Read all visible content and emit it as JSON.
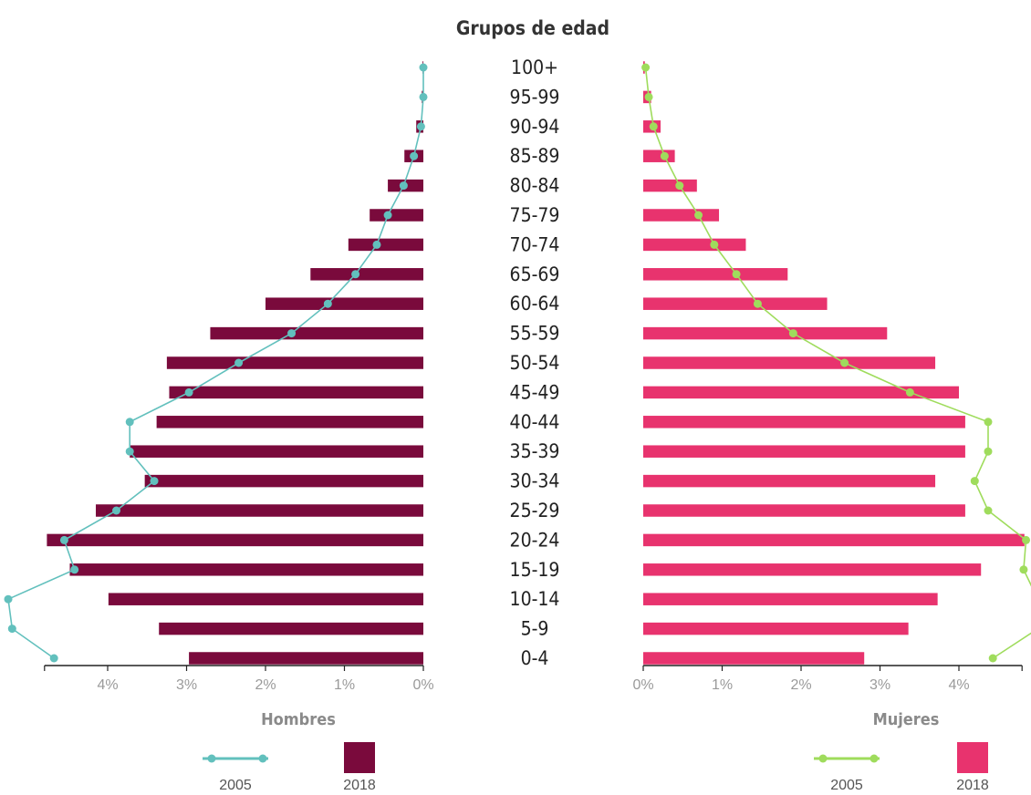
{
  "chart_data": {
    "type": "bar",
    "title": "Grupos de edad",
    "categories": [
      "100+",
      "95-99",
      "90-94",
      "85-89",
      "80-84",
      "75-79",
      "70-74",
      "65-69",
      "60-64",
      "55-59",
      "50-54",
      "45-49",
      "40-44",
      "35-39",
      "30-34",
      "25-29",
      "20-24",
      "15-19",
      "10-14",
      "5-9",
      "0-4"
    ],
    "x_ticks": [
      "0%",
      "1%",
      "2%",
      "3%",
      "4%"
    ],
    "xlim": [
      0,
      4.8
    ],
    "panels": [
      {
        "label": "Hombres",
        "side": "left",
        "series": [
          {
            "name": "2018",
            "type": "bar",
            "color": "#7a0a3c",
            "values": [
              0.01,
              0.02,
              0.09,
              0.24,
              0.45,
              0.68,
              0.95,
              1.43,
              2.0,
              2.7,
              3.25,
              3.22,
              3.38,
              3.72,
              3.53,
              4.15,
              4.77,
              4.48,
              3.99,
              3.35,
              2.97
            ]
          },
          {
            "name": "2005",
            "type": "line",
            "color": "#62c0bd",
            "values": [
              0.0,
              0.0,
              0.03,
              0.12,
              0.25,
              0.45,
              0.59,
              0.86,
              1.21,
              1.67,
              2.34,
              2.97,
              3.72,
              3.72,
              3.41,
              3.89,
              4.55,
              4.42,
              5.26,
              5.21,
              4.68
            ]
          }
        ]
      },
      {
        "label": "Mujeres",
        "side": "right",
        "series": [
          {
            "name": "2018",
            "type": "bar",
            "color": "#e8336e",
            "values": [
              0.02,
              0.1,
              0.22,
              0.4,
              0.68,
              0.96,
              1.3,
              1.83,
              2.33,
              3.09,
              3.7,
              4.0,
              4.08,
              4.08,
              3.7,
              4.08,
              4.83,
              4.28,
              3.73,
              3.36,
              2.8
            ]
          },
          {
            "name": "2005",
            "type": "line",
            "color": "#9fdc5c",
            "values": [
              0.03,
              0.07,
              0.13,
              0.27,
              0.46,
              0.7,
              0.9,
              1.18,
              1.45,
              1.9,
              2.55,
              3.38,
              4.37,
              4.37,
              4.2,
              4.37,
              4.85,
              4.82,
              5.0,
              5.0,
              4.43
            ]
          }
        ]
      }
    ],
    "legend": [
      {
        "name": "2005",
        "type": "line"
      },
      {
        "name": "2018",
        "type": "bar"
      }
    ]
  }
}
